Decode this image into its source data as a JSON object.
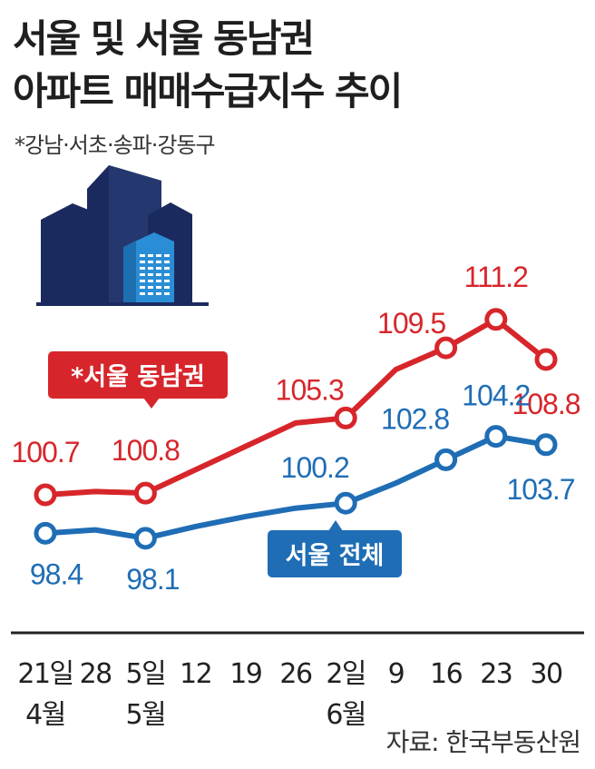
{
  "title_lines": [
    "서울 및 서울 동남권",
    "아파트 매매수급지수 추이"
  ],
  "subtitle": "*강남·서초·송파·강동구",
  "source": "자료: 한국부동산원",
  "colors": {
    "seoul_southeast": "#d7262b",
    "seoul_total": "#1f6db5",
    "axis": "#222222",
    "icon_dark": "#1b2a5e",
    "icon_light": "#2a8ed6"
  },
  "icon": "apartment-building-icon",
  "chart_data": {
    "type": "line",
    "x_ticks": [
      "21일",
      "28",
      "5일",
      "12",
      "19",
      "26",
      "2일",
      "9",
      "16",
      "23",
      "30"
    ],
    "month_labels": [
      {
        "text": "4월",
        "index": 0
      },
      {
        "text": "5월",
        "index": 2
      },
      {
        "text": "6월",
        "index": 6
      }
    ],
    "series": [
      {
        "name": "*서울 동남권",
        "values": [
          100.7,
          100.9,
          100.8,
          102.2,
          103.6,
          105.0,
          105.3,
          108.2,
          109.5,
          111.2,
          108.8
        ],
        "labels": [
          "100.7",
          null,
          "100.8",
          null,
          null,
          null,
          "105.3",
          null,
          "109.5",
          "111.2",
          "108.8"
        ]
      },
      {
        "name": "서울 전체",
        "values": [
          98.4,
          98.6,
          98.1,
          98.8,
          99.4,
          99.9,
          100.2,
          101.4,
          102.8,
          104.2,
          103.7
        ],
        "labels": [
          "98.4",
          null,
          "98.1",
          null,
          null,
          null,
          "100.2",
          null,
          "102.8",
          "104.2",
          "103.7"
        ]
      }
    ],
    "ylim": [
      96,
      112
    ]
  }
}
